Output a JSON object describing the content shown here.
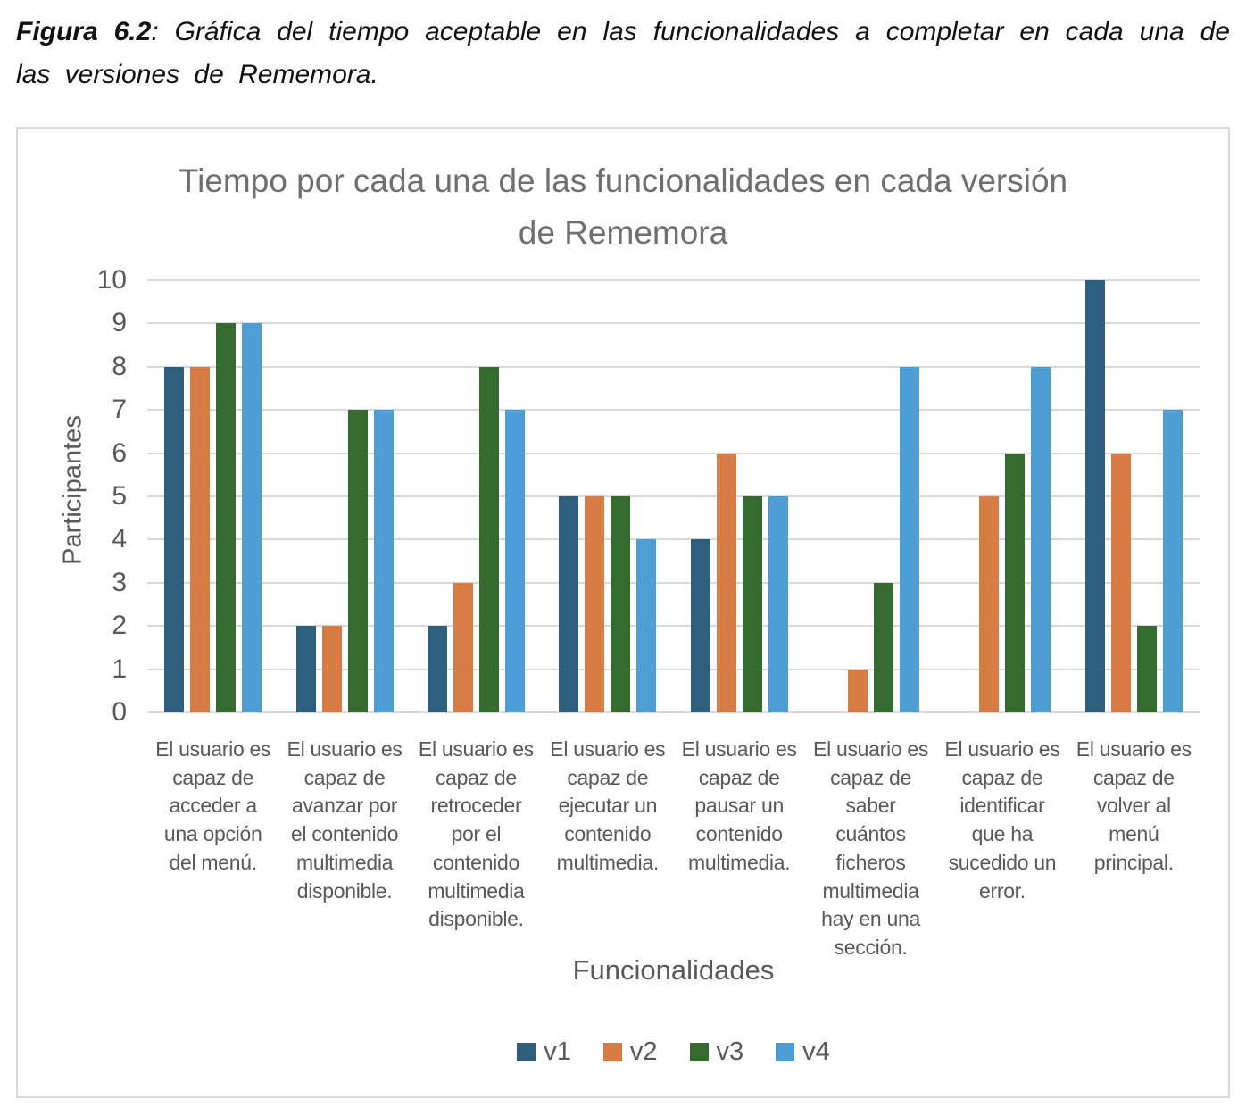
{
  "caption": {
    "label": "Figura 6.2",
    "text": ": Gráfica del tiempo aceptable en las funcionalidades a completar en cada una de las versiones de Rememora."
  },
  "chart_data": {
    "type": "bar",
    "title": "Tiempo por cada una de las funcionalidades en cada versión de Rememora",
    "xlabel": "Funcionalidades",
    "ylabel": "Participantes",
    "ylim": [
      0,
      10
    ],
    "ytick_step": 1,
    "grid": "horizontal",
    "legend_position": "bottom",
    "categories": [
      "El usuario es capaz de acceder a una opción del menú.",
      "El usuario es capaz de avanzar por el contenido multimedia disponible.",
      "El usuario es capaz de retroceder por el contenido multimedia disponible.",
      "El usuario es capaz de ejecutar un contenido multimedia.",
      "El usuario es capaz de pausar un contenido multimedia.",
      "El usuario es capaz de saber cuántos ficheros multimedia hay en una sección.",
      "El usuario es capaz de identificar que ha sucedido un error.",
      "El usuario es capaz de volver al menú principal."
    ],
    "series": [
      {
        "name": "v1",
        "color": "#2E5F7E",
        "values": [
          8,
          2,
          2,
          5,
          4,
          0,
          0,
          10
        ]
      },
      {
        "name": "v2",
        "color": "#D87C45",
        "values": [
          8,
          2,
          3,
          5,
          6,
          1,
          5,
          6
        ]
      },
      {
        "name": "v3",
        "color": "#356B2E",
        "values": [
          9,
          7,
          8,
          5,
          5,
          3,
          6,
          2
        ]
      },
      {
        "name": "v4",
        "color": "#4D9ED5",
        "values": [
          9,
          7,
          7,
          4,
          5,
          8,
          8,
          7
        ]
      }
    ]
  },
  "colors": {
    "grid": "#D9D9D9",
    "frame_border": "#D9D9D9",
    "axis_text": "#595959",
    "title_text": "#6F6F6F"
  }
}
